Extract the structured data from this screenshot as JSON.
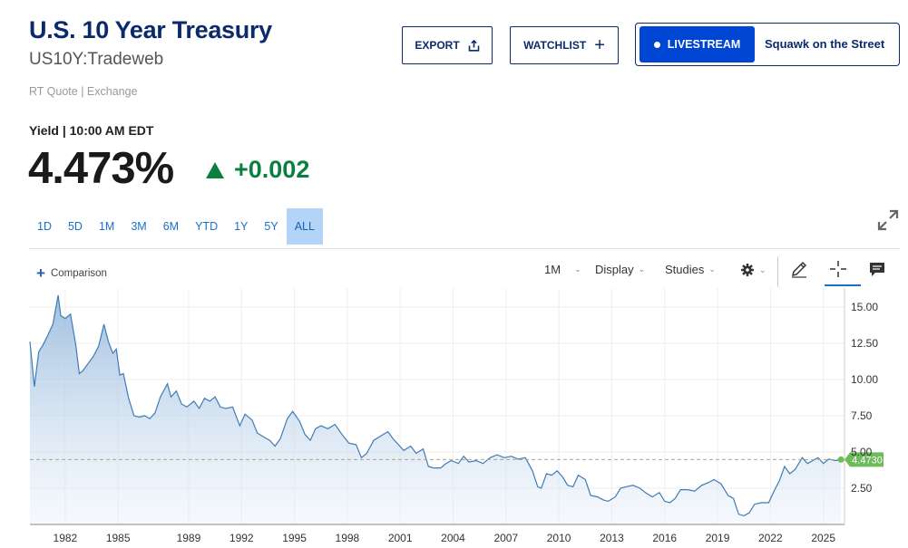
{
  "header": {
    "title": "U.S. 10 Year Treasury",
    "ticker": "US10Y:Tradeweb",
    "quote_type": "RT Quote | Exchange"
  },
  "buttons": {
    "export": "EXPORT",
    "watchlist": "WATCHLIST",
    "livestream": "LIVESTREAM",
    "live_show": "Squawk on the Street"
  },
  "quote": {
    "label": "Yield | 10:00 AM EDT",
    "value": "4.473%",
    "change": "+0.002",
    "direction": "up"
  },
  "ranges": [
    "1D",
    "5D",
    "1M",
    "3M",
    "6M",
    "YTD",
    "1Y",
    "5Y",
    "ALL"
  ],
  "active_range": "ALL",
  "toolbar": {
    "comparison": "Comparison",
    "interval": "1M",
    "display": "Display",
    "studies": "Studies"
  },
  "colors": {
    "brand": "#0b2a6b",
    "link": "#1c6fc9",
    "live": "#0046d5",
    "up": "#0a7f3f",
    "line": "#3f7bb5",
    "last_label": "#6fba5b"
  },
  "icons": [
    "share-icon",
    "plus-icon",
    "live-dot-icon",
    "expand-icon",
    "gear-icon",
    "pencil-icon",
    "crosshair-icon",
    "comment-icon"
  ],
  "chart_data": {
    "type": "area",
    "title": "",
    "xlabel": "",
    "ylabel": "",
    "x_ticks": [
      "1982",
      "1985",
      "1989",
      "1992",
      "1995",
      "1998",
      "2001",
      "2004",
      "2007",
      "2010",
      "2013",
      "2016",
      "2019",
      "2022",
      "2025"
    ],
    "y_ticks": [
      "2.50",
      "5.00",
      "7.50",
      "10.00",
      "12.50",
      "15.00"
    ],
    "xlim": [
      1980.0,
      2026.2
    ],
    "ylim": [
      0,
      16.3
    ],
    "last_value": "4.4730",
    "series": [
      {
        "x": [
          1980.0,
          1980.25,
          1980.5,
          1980.75,
          1981.0,
          1981.3,
          1981.6,
          1981.75,
          1982.0,
          1982.3,
          1982.6,
          1982.8,
          1983.0,
          1983.3,
          1983.6,
          1983.9,
          1984.2,
          1984.45,
          1984.7,
          1984.9,
          1985.1,
          1985.3,
          1985.6,
          1985.9,
          1986.2,
          1986.5,
          1986.8,
          1987.1,
          1987.4,
          1987.8,
          1988.0,
          1988.3,
          1988.6,
          1988.9,
          1989.3,
          1989.6,
          1989.9,
          1990.2,
          1990.5,
          1990.8,
          1991.1,
          1991.5,
          1991.9,
          1992.2,
          1992.6,
          1992.9,
          1993.3,
          1993.6,
          1993.9,
          1994.2,
          1994.6,
          1994.9,
          1995.3,
          1995.6,
          1995.9,
          1996.2,
          1996.5,
          1996.9,
          1997.3,
          1997.7,
          1998.1,
          1998.5,
          1998.8,
          1999.1,
          1999.5,
          1999.9,
          2000.3,
          2000.6,
          2000.9,
          2001.2,
          2001.6,
          2001.9,
          2002.3,
          2002.6,
          2002.9,
          2003.3,
          2003.6,
          2003.9,
          2004.3,
          2004.6,
          2004.9,
          2005.3,
          2005.7,
          2006.1,
          2006.5,
          2006.9,
          2007.3,
          2007.7,
          2008.1,
          2008.5,
          2008.8,
          2009.0,
          2009.3,
          2009.6,
          2009.9,
          2010.2,
          2010.5,
          2010.8,
          2011.1,
          2011.5,
          2011.8,
          2012.2,
          2012.5,
          2012.8,
          2013.2,
          2013.5,
          2013.8,
          2014.2,
          2014.6,
          2014.9,
          2015.3,
          2015.7,
          2016.0,
          2016.3,
          2016.6,
          2016.9,
          2017.3,
          2017.7,
          2018.1,
          2018.5,
          2018.8,
          2019.2,
          2019.6,
          2019.9,
          2020.2,
          2020.5,
          2020.8,
          2021.1,
          2021.5,
          2021.9,
          2022.2,
          2022.5,
          2022.8,
          2023.1,
          2023.4,
          2023.8,
          2024.1,
          2024.4,
          2024.7,
          2025.0,
          2025.3,
          2025.7,
          2026.0
        ],
        "values": [
          12.6,
          9.5,
          11.9,
          12.4,
          13.0,
          13.8,
          15.8,
          14.4,
          14.2,
          14.5,
          12.4,
          10.4,
          10.6,
          11.1,
          11.6,
          12.3,
          13.8,
          12.6,
          11.8,
          12.1,
          10.3,
          10.4,
          8.7,
          7.5,
          7.4,
          7.5,
          7.3,
          7.7,
          8.8,
          9.7,
          8.8,
          9.2,
          8.3,
          8.1,
          8.5,
          8.0,
          8.7,
          8.5,
          8.8,
          8.1,
          8.0,
          8.1,
          6.8,
          7.6,
          7.2,
          6.3,
          6.0,
          5.8,
          5.4,
          5.9,
          7.3,
          7.8,
          7.1,
          6.2,
          5.8,
          6.6,
          6.8,
          6.6,
          6.9,
          6.2,
          5.6,
          5.5,
          4.6,
          4.9,
          5.8,
          6.1,
          6.4,
          5.9,
          5.5,
          5.1,
          5.4,
          4.9,
          5.2,
          4.0,
          3.9,
          3.9,
          4.2,
          4.4,
          4.2,
          4.7,
          4.3,
          4.4,
          4.2,
          4.6,
          4.8,
          4.6,
          4.7,
          4.5,
          4.6,
          3.7,
          2.6,
          2.5,
          3.5,
          3.4,
          3.7,
          3.3,
          2.7,
          2.6,
          3.4,
          3.1,
          2.0,
          1.9,
          1.7,
          1.6,
          1.9,
          2.5,
          2.6,
          2.7,
          2.5,
          2.2,
          1.9,
          2.2,
          1.6,
          1.5,
          1.8,
          2.4,
          2.4,
          2.3,
          2.7,
          2.9,
          3.1,
          2.8,
          2.0,
          1.8,
          0.7,
          0.6,
          0.8,
          1.4,
          1.5,
          1.5,
          2.3,
          3.0,
          4.0,
          3.5,
          3.8,
          4.6,
          4.2,
          4.4,
          4.6,
          4.2,
          4.5,
          4.4,
          4.47
        ]
      }
    ]
  }
}
